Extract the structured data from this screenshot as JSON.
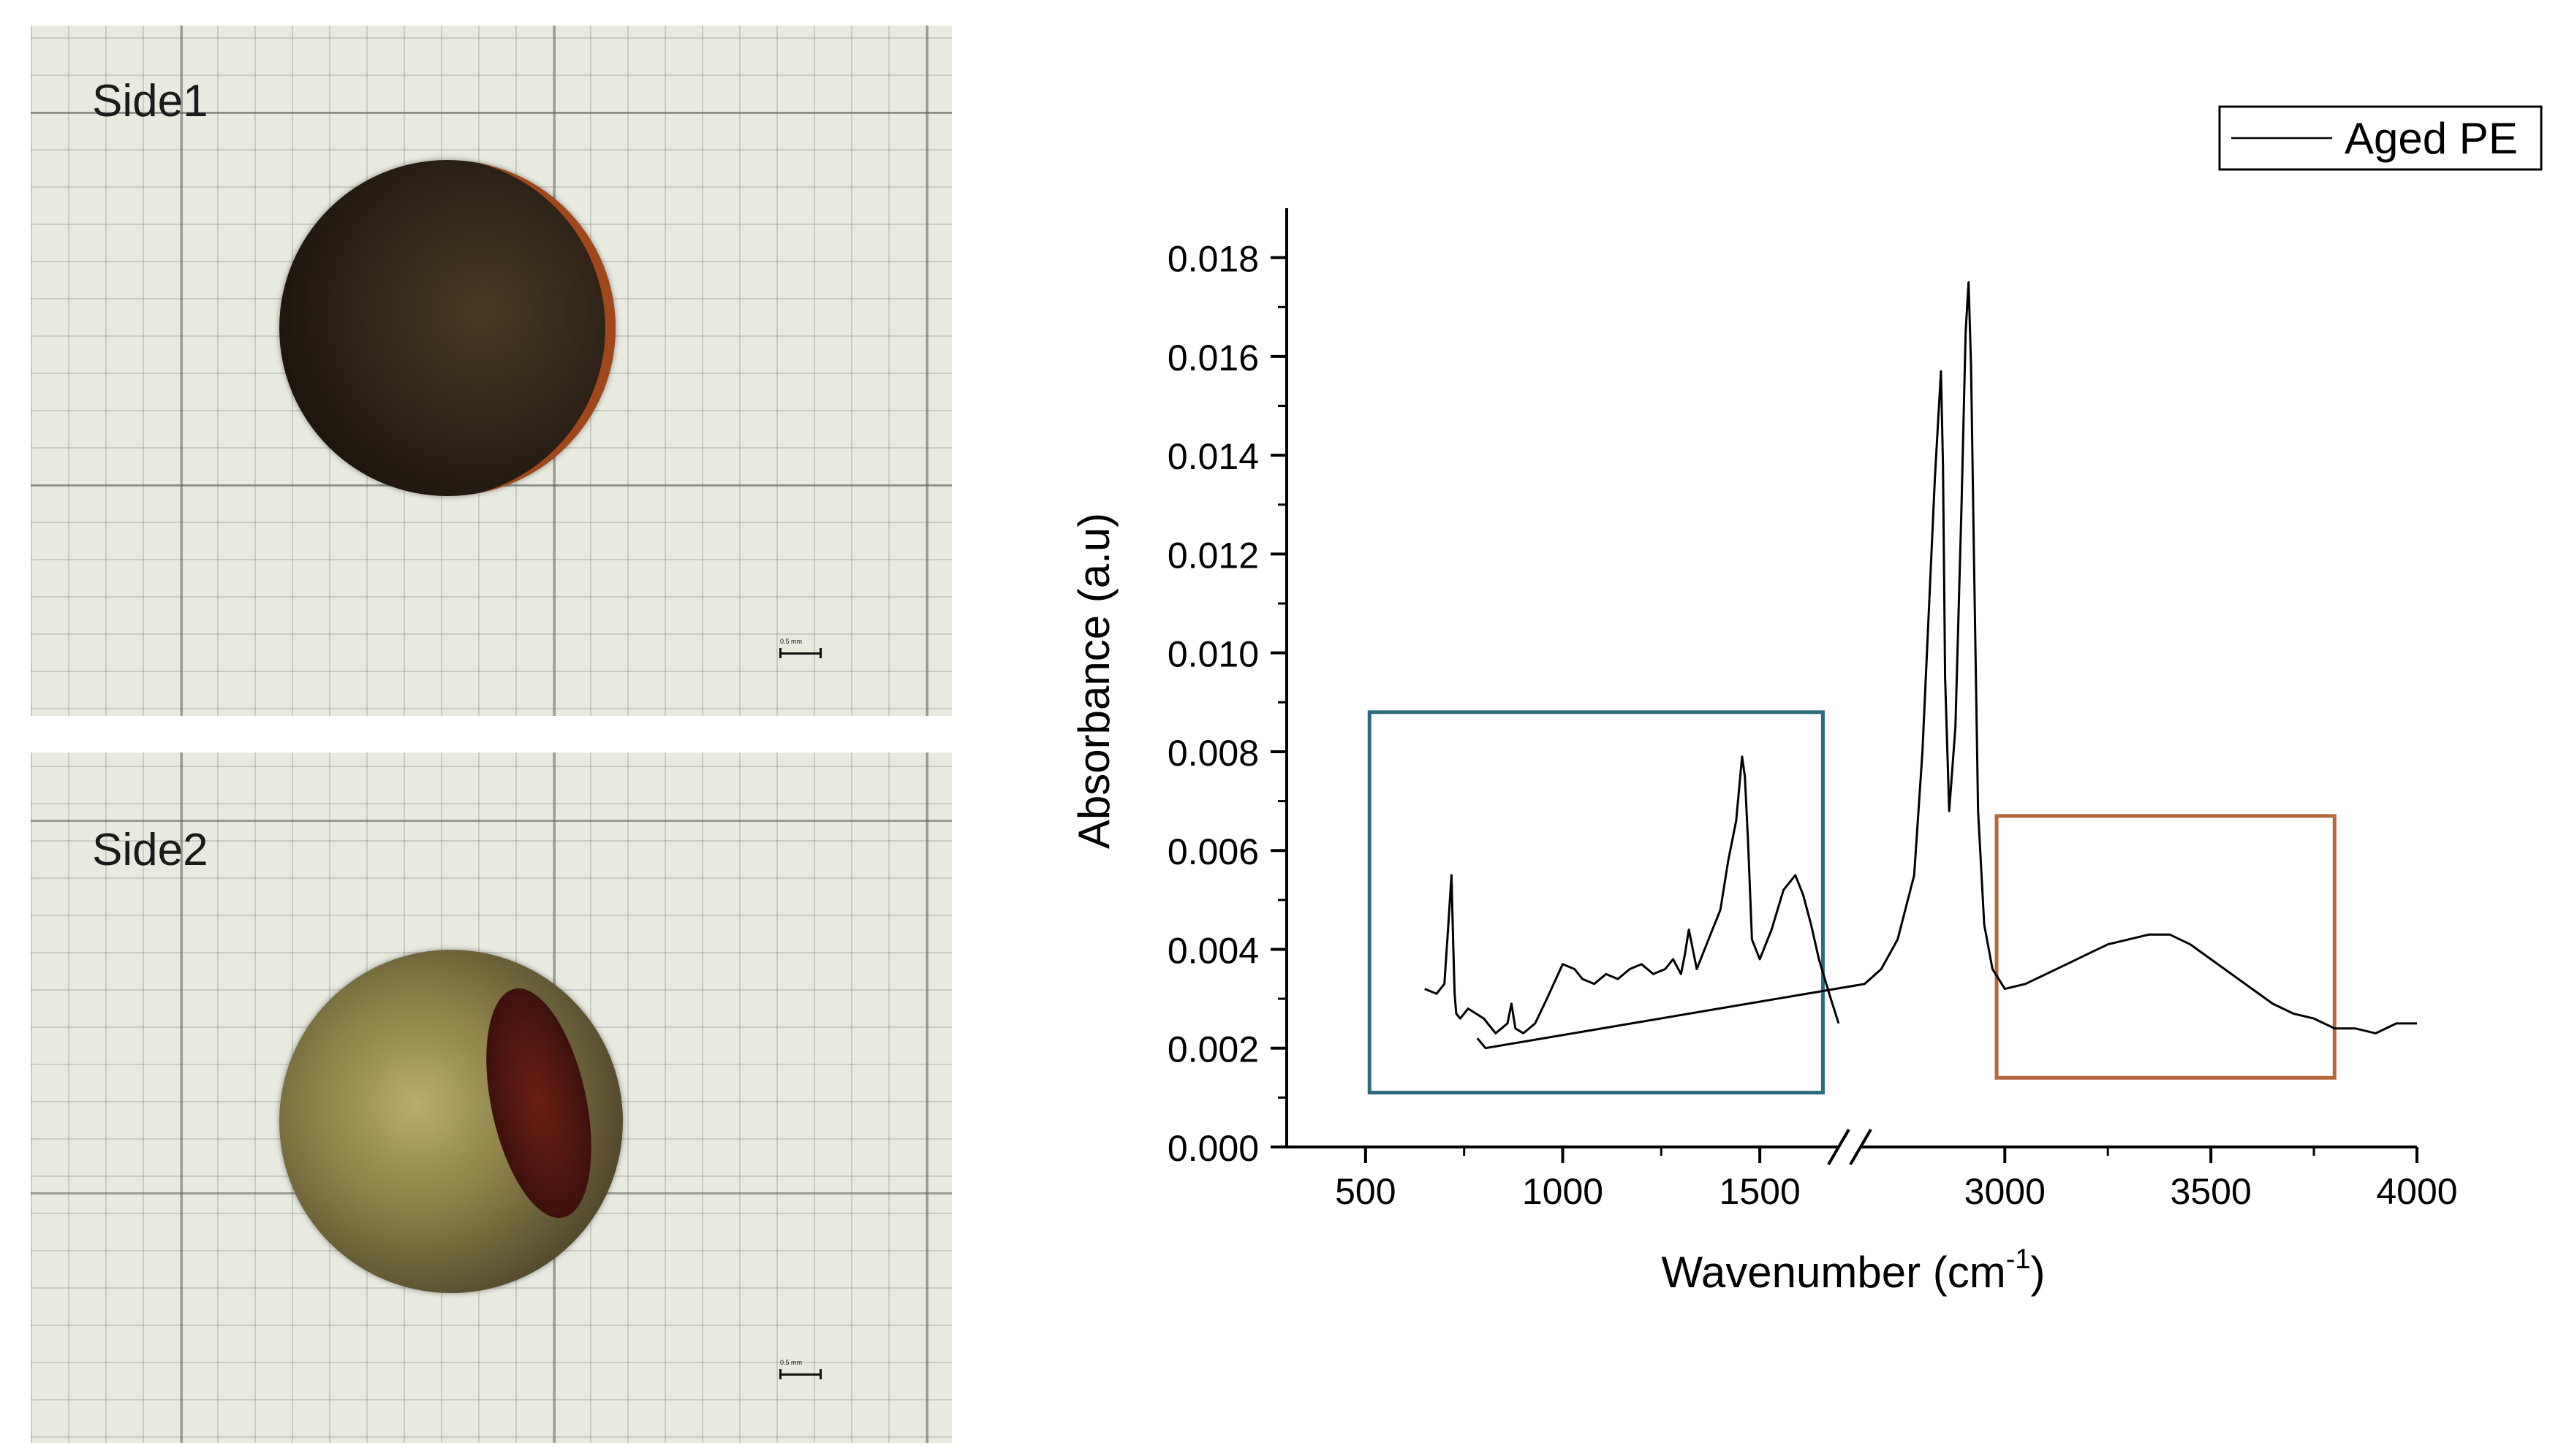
{
  "photos": {
    "side1": {
      "label": "Side1",
      "scale_text": "0.5 mm"
    },
    "side2": {
      "label": "Side2",
      "scale_text": "0.5 mm"
    }
  },
  "colors": {
    "line": "#000000",
    "inset_left_box": "#2b6b7e",
    "inset_right_box": "#b5663a",
    "axis": "#000000"
  },
  "chart_data": {
    "type": "line",
    "title": "",
    "xlabel": "Wavenumber (cm",
    "xlabel_sup": "-1",
    "xlabel_close": ")",
    "ylabel": "Absorbance (a.u)",
    "xlim": [
      300,
      4000
    ],
    "ylim": [
      0,
      0.019
    ],
    "axis_break": [
      1700,
      2650
    ],
    "x_ticks": [
      500,
      1000,
      1500,
      3000,
      3500,
      4000
    ],
    "x_tick_labels": [
      "500",
      "1000",
      "1500",
      "3000",
      "3500",
      "4000"
    ],
    "y_ticks": [
      0,
      0.002,
      0.004,
      0.006,
      0.008,
      0.01,
      0.012,
      0.014,
      0.016,
      0.018
    ],
    "y_tick_labels": [
      "0.000",
      "0.002",
      "0.004",
      "0.006",
      "0.008",
      "0.010",
      "0.012",
      "0.014",
      "0.016",
      "0.018"
    ],
    "legend": {
      "position": "top-right",
      "entries": [
        "Aged PE"
      ]
    },
    "series": [
      {
        "name": "Aged PE",
        "x": [
          650,
          680,
          700,
          710,
          718,
          722,
          726,
          730,
          740,
          760,
          780,
          800,
          830,
          860,
          870,
          880,
          900,
          930,
          960,
          1000,
          1030,
          1050,
          1080,
          1110,
          1140,
          1170,
          1200,
          1230,
          1260,
          1280,
          1300,
          1310,
          1320,
          1340,
          1370,
          1400,
          1420,
          1440,
          1455,
          1462,
          1470,
          1480,
          1500,
          1530,
          1560,
          1590,
          1610,
          1630,
          1650,
          1680,
          1700,
          1720,
          1740,
          2660,
          2700,
          2740,
          2780,
          2800,
          2830,
          2845,
          2850,
          2855,
          2865,
          2880,
          2895,
          2905,
          2912,
          2918,
          2925,
          2935,
          2950,
          2970,
          3000,
          3050,
          3100,
          3150,
          3200,
          3250,
          3300,
          3350,
          3400,
          3450,
          3500,
          3550,
          3600,
          3650,
          3700,
          3750,
          3800,
          3850,
          3900,
          3950,
          4000
        ],
        "y": [
          0.0032,
          0.0031,
          0.0033,
          0.0045,
          0.0055,
          0.0042,
          0.0031,
          0.0027,
          0.0026,
          0.0028,
          0.0027,
          0.0026,
          0.0023,
          0.0025,
          0.0029,
          0.0024,
          0.0023,
          0.0025,
          0.003,
          0.0037,
          0.0036,
          0.0034,
          0.0033,
          0.0035,
          0.0034,
          0.0036,
          0.0037,
          0.0035,
          0.0036,
          0.0038,
          0.0035,
          0.0039,
          0.0044,
          0.0036,
          0.0042,
          0.0048,
          0.0058,
          0.0066,
          0.0079,
          0.0075,
          0.0062,
          0.0042,
          0.0038,
          0.0044,
          0.0052,
          0.0055,
          0.0051,
          0.0045,
          0.0038,
          0.003,
          0.0025,
          0.0022,
          0.002,
          0.0033,
          0.0036,
          0.0042,
          0.0055,
          0.008,
          0.0135,
          0.0157,
          0.0138,
          0.0095,
          0.0068,
          0.0085,
          0.013,
          0.0165,
          0.0175,
          0.0158,
          0.012,
          0.0068,
          0.0045,
          0.0036,
          0.0032,
          0.0033,
          0.0035,
          0.0037,
          0.0039,
          0.0041,
          0.0042,
          0.0043,
          0.0043,
          0.0041,
          0.0038,
          0.0035,
          0.0032,
          0.0029,
          0.0027,
          0.0026,
          0.0024,
          0.0024,
          0.0023,
          0.0025,
          0.0025
        ]
      }
    ],
    "highlight_regions": [
      {
        "x": [
          510,
          1660
        ],
        "y": [
          0.0011,
          0.0088
        ],
        "color": "#2b6b7e"
      },
      {
        "x": [
          2980,
          3800
        ],
        "y": [
          0.0014,
          0.0067
        ],
        "color": "#b5663a"
      }
    ]
  }
}
